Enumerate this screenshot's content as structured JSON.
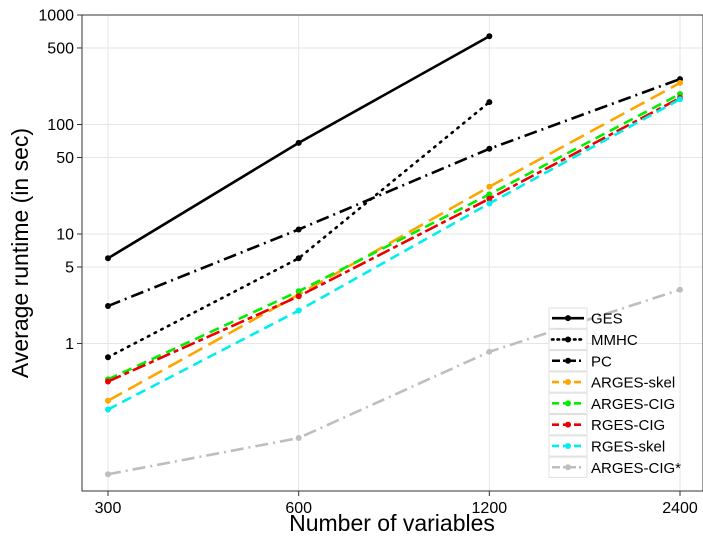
{
  "chart_data": {
    "type": "line",
    "title": "",
    "xlabel": "Number of variables",
    "ylabel": "Average runtime (in sec)",
    "x_scale": "log2",
    "y_scale": "log10",
    "x": [
      300,
      600,
      1200,
      2400
    ],
    "x_tick_labels": [
      "300",
      "600",
      "1200",
      "2400"
    ],
    "y_ticks": [
      1,
      5,
      10,
      50,
      100,
      500,
      1000
    ],
    "y_tick_labels": [
      "1",
      "5",
      "10",
      "50",
      "100",
      "500",
      "1000"
    ],
    "ylim": [
      0.045,
      1000
    ],
    "grid": true,
    "legend_position": "bottom-right",
    "series": [
      {
        "name": "GES",
        "color": "#000000",
        "dash": "solid",
        "values": [
          6,
          68,
          640,
          null
        ]
      },
      {
        "name": "MMHC",
        "color": "#000000",
        "dash": "dotted",
        "values": [
          0.75,
          6,
          160,
          null
        ]
      },
      {
        "name": "PC",
        "color": "#000000",
        "dash": "dashdot",
        "values": [
          2.2,
          11,
          60,
          260
        ]
      },
      {
        "name": "ARGES-skel",
        "color": "#FFA500",
        "dash": "longdash",
        "values": [
          0.3,
          2.8,
          27,
          240
        ]
      },
      {
        "name": "ARGES-CIG",
        "color": "#00EE00",
        "dash": "dashed",
        "values": [
          0.47,
          3,
          23,
          190
        ]
      },
      {
        "name": "RGES-CIG",
        "color": "#EE0000",
        "dash": "twodash",
        "values": [
          0.45,
          2.7,
          21,
          175
        ]
      },
      {
        "name": "RGES-skel",
        "color": "#00EEEE",
        "dash": "dashed",
        "values": [
          0.25,
          2,
          19,
          170
        ]
      },
      {
        "name": "ARGES-CIG*",
        "color": "#BEBEBE",
        "dash": "dashdot",
        "values": [
          0.064,
          0.137,
          0.84,
          3.1
        ]
      }
    ]
  }
}
